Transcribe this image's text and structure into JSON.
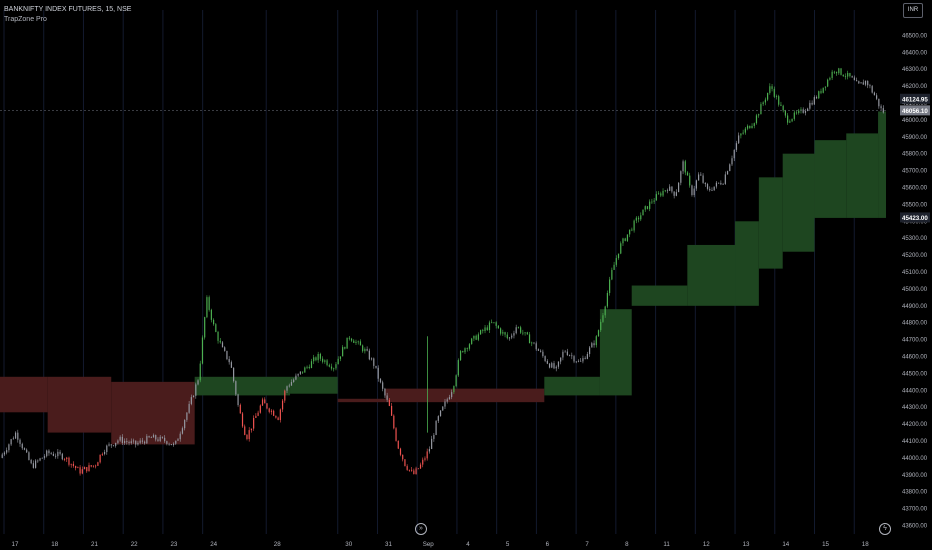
{
  "header": {
    "symbol_line": "BANKNIFTY INDEX FUTURES, 15, NSE",
    "indicator": "TrapZone Pro",
    "currency": "INR"
  },
  "icons": {
    "scroll_to_realtime": "double-chevron-right-icon",
    "replay": "lightning-icon"
  },
  "colors": {
    "background": "#000000",
    "bull_candle": "#4caf50",
    "bear_candle": "#ef5350",
    "neutral_candle": "#9598a1",
    "bull_zone": "#1e4620",
    "bear_zone": "#4a1c1c",
    "axis_text": "#b2b5be",
    "last_price_label": "#787b86",
    "highlight_label": "#1e222d"
  },
  "chart_data": {
    "type": "candlestick",
    "symbol": "BANKNIFTY INDEX FUTURES",
    "interval": "15",
    "exchange": "NSE",
    "currency": "INR",
    "ylim": [
      43550,
      46650
    ],
    "y_ticks": [
      43600,
      43700,
      43800,
      43900,
      44000,
      44100,
      44200,
      44300,
      44400,
      44500,
      44600,
      44700,
      44800,
      44900,
      45000,
      45100,
      45200,
      45300,
      45400,
      45500,
      45600,
      45700,
      45800,
      45900,
      46000,
      46100,
      46200,
      46300,
      46400,
      46500
    ],
    "x_ticks": [
      "17",
      "18",
      "21",
      "22",
      "23",
      "24",
      "28",
      "30",
      "31",
      "Sep",
      "4",
      "5",
      "6",
      "7",
      "8",
      "11",
      "12",
      "13",
      "14",
      "15",
      "18"
    ],
    "price_labels": [
      {
        "value": "46124.95",
        "style": "highlight"
      },
      {
        "value": "46056.10",
        "style": "last"
      },
      {
        "value": "45423.00",
        "style": "highlight"
      }
    ],
    "price_path": [
      {
        "t": 0,
        "p": 44000,
        "c": "g"
      },
      {
        "t": 2,
        "p": 44150,
        "c": "g"
      },
      {
        "t": 4,
        "p": 43950,
        "c": "g"
      },
      {
        "t": 6,
        "p": 44030,
        "c": "g"
      },
      {
        "t": 8,
        "p": 44010,
        "c": "r"
      },
      {
        "t": 10,
        "p": 43920,
        "c": "r"
      },
      {
        "t": 12,
        "p": 43960,
        "c": "r"
      },
      {
        "t": 13,
        "p": 44050,
        "c": "g"
      },
      {
        "t": 15,
        "p": 44110,
        "c": "g"
      },
      {
        "t": 17,
        "p": 44080,
        "c": "g"
      },
      {
        "t": 19,
        "p": 44120,
        "c": "g"
      },
      {
        "t": 21,
        "p": 44100,
        "c": "g"
      },
      {
        "t": 22,
        "p": 44070,
        "c": "g"
      },
      {
        "t": 24,
        "p": 44330,
        "c": "g"
      },
      {
        "t": 25,
        "p": 44480,
        "c": "b"
      },
      {
        "t": 26,
        "p": 44940,
        "c": "b"
      },
      {
        "t": 27,
        "p": 44760,
        "c": "b"
      },
      {
        "t": 28,
        "p": 44640,
        "c": "g"
      },
      {
        "t": 29,
        "p": 44560,
        "c": "g"
      },
      {
        "t": 30,
        "p": 44300,
        "c": "r"
      },
      {
        "t": 31,
        "p": 44120,
        "c": "r"
      },
      {
        "t": 33,
        "p": 44330,
        "c": "r"
      },
      {
        "t": 35,
        "p": 44240,
        "c": "r"
      },
      {
        "t": 36,
        "p": 44420,
        "c": "g"
      },
      {
        "t": 38,
        "p": 44510,
        "c": "b"
      },
      {
        "t": 40,
        "p": 44600,
        "c": "b"
      },
      {
        "t": 42,
        "p": 44540,
        "c": "b"
      },
      {
        "t": 44,
        "p": 44720,
        "c": "b"
      },
      {
        "t": 46,
        "p": 44630,
        "c": "g"
      },
      {
        "t": 47,
        "p": 44560,
        "c": "g"
      },
      {
        "t": 48,
        "p": 44420,
        "c": "g"
      },
      {
        "t": 49,
        "p": 44300,
        "c": "r"
      },
      {
        "t": 50,
        "p": 44080,
        "c": "r"
      },
      {
        "t": 51,
        "p": 43960,
        "c": "r"
      },
      {
        "t": 52,
        "p": 43900,
        "c": "r"
      },
      {
        "t": 53,
        "p": 43960,
        "c": "r"
      },
      {
        "t": 54,
        "p": 44050,
        "c": "g"
      },
      {
        "t": 55,
        "p": 44220,
        "c": "g"
      },
      {
        "t": 56,
        "p": 44320,
        "c": "g"
      },
      {
        "t": 57,
        "p": 44420,
        "c": "b"
      },
      {
        "t": 58,
        "p": 44630,
        "c": "b"
      },
      {
        "t": 60,
        "p": 44720,
        "c": "b"
      },
      {
        "t": 62,
        "p": 44800,
        "c": "b"
      },
      {
        "t": 64,
        "p": 44700,
        "c": "g"
      },
      {
        "t": 65,
        "p": 44780,
        "c": "b"
      },
      {
        "t": 67,
        "p": 44680,
        "c": "g"
      },
      {
        "t": 69,
        "p": 44560,
        "c": "g"
      },
      {
        "t": 70,
        "p": 44520,
        "c": "g"
      },
      {
        "t": 71,
        "p": 44640,
        "c": "g"
      },
      {
        "t": 73,
        "p": 44560,
        "c": "g"
      },
      {
        "t": 75,
        "p": 44700,
        "c": "b"
      },
      {
        "t": 76,
        "p": 44880,
        "c": "b"
      },
      {
        "t": 77,
        "p": 45100,
        "c": "b"
      },
      {
        "t": 78,
        "p": 45250,
        "c": "b"
      },
      {
        "t": 80,
        "p": 45400,
        "c": "b"
      },
      {
        "t": 82,
        "p": 45520,
        "c": "b"
      },
      {
        "t": 84,
        "p": 45600,
        "c": "g"
      },
      {
        "t": 85,
        "p": 45560,
        "c": "g"
      },
      {
        "t": 86,
        "p": 45750,
        "c": "b"
      },
      {
        "t": 87,
        "p": 45560,
        "c": "g"
      },
      {
        "t": 88,
        "p": 45680,
        "c": "g"
      },
      {
        "t": 89,
        "p": 45580,
        "c": "g"
      },
      {
        "t": 91,
        "p": 45640,
        "c": "g"
      },
      {
        "t": 93,
        "p": 45900,
        "c": "b"
      },
      {
        "t": 95,
        "p": 46000,
        "c": "b"
      },
      {
        "t": 97,
        "p": 46200,
        "c": "b"
      },
      {
        "t": 99,
        "p": 46000,
        "c": "b"
      },
      {
        "t": 101,
        "p": 46050,
        "c": "g"
      },
      {
        "t": 103,
        "p": 46150,
        "c": "b"
      },
      {
        "t": 105,
        "p": 46300,
        "c": "b"
      },
      {
        "t": 107,
        "p": 46250,
        "c": "g"
      },
      {
        "t": 108,
        "p": 46200,
        "c": "g"
      },
      {
        "t": 109,
        "p": 46230,
        "c": "g"
      },
      {
        "t": 110,
        "p": 46150,
        "c": "g"
      },
      {
        "t": 111,
        "p": 46050,
        "c": "g"
      }
    ],
    "trap_zones": [
      {
        "type": "bear",
        "t0": 0,
        "t1": 6,
        "top": 44480,
        "bottom": 44270
      },
      {
        "type": "bear",
        "t0": 6,
        "t1": 14,
        "top": 44480,
        "bottom": 44150
      },
      {
        "type": "bear",
        "t0": 14,
        "t1": 24.5,
        "top": 44450,
        "bottom": 44080
      },
      {
        "type": "bull",
        "t0": 24.5,
        "t1": 36.5,
        "top": 44480,
        "bottom": 44370
      },
      {
        "type": "bull",
        "t0": 36.5,
        "t1": 42.5,
        "top": 44480,
        "bottom": 44380
      },
      {
        "type": "bear",
        "t0": 42.5,
        "t1": 48.5,
        "top": 44350,
        "bottom": 44330
      },
      {
        "type": "bear",
        "t0": 48.5,
        "t1": 68.5,
        "top": 44410,
        "bottom": 44330
      },
      {
        "type": "bull",
        "t0": 68.5,
        "t1": 75.5,
        "top": 44480,
        "bottom": 44370
      },
      {
        "type": "bull",
        "t0": 75.5,
        "t1": 79.5,
        "top": 44880,
        "bottom": 44370
      },
      {
        "type": "bull",
        "t0": 79.5,
        "t1": 86.5,
        "top": 45020,
        "bottom": 44900
      },
      {
        "type": "bull",
        "t0": 86.5,
        "t1": 92.5,
        "top": 45260,
        "bottom": 44900
      },
      {
        "type": "bull",
        "t0": 92.5,
        "t1": 95.5,
        "top": 45400,
        "bottom": 44900
      },
      {
        "type": "bull",
        "t0": 95.5,
        "t1": 98.5,
        "top": 45660,
        "bottom": 45120
      },
      {
        "type": "bull",
        "t0": 98.5,
        "t1": 102.5,
        "top": 45800,
        "bottom": 45220
      },
      {
        "type": "bull",
        "t0": 102.5,
        "t1": 106.5,
        "top": 45880,
        "bottom": 45420
      },
      {
        "type": "bull",
        "t0": 106.5,
        "t1": 110.5,
        "top": 45920,
        "bottom": 45420
      },
      {
        "type": "bull",
        "t0": 110.5,
        "t1": 111.5,
        "top": 46050,
        "bottom": 45420
      }
    ]
  }
}
